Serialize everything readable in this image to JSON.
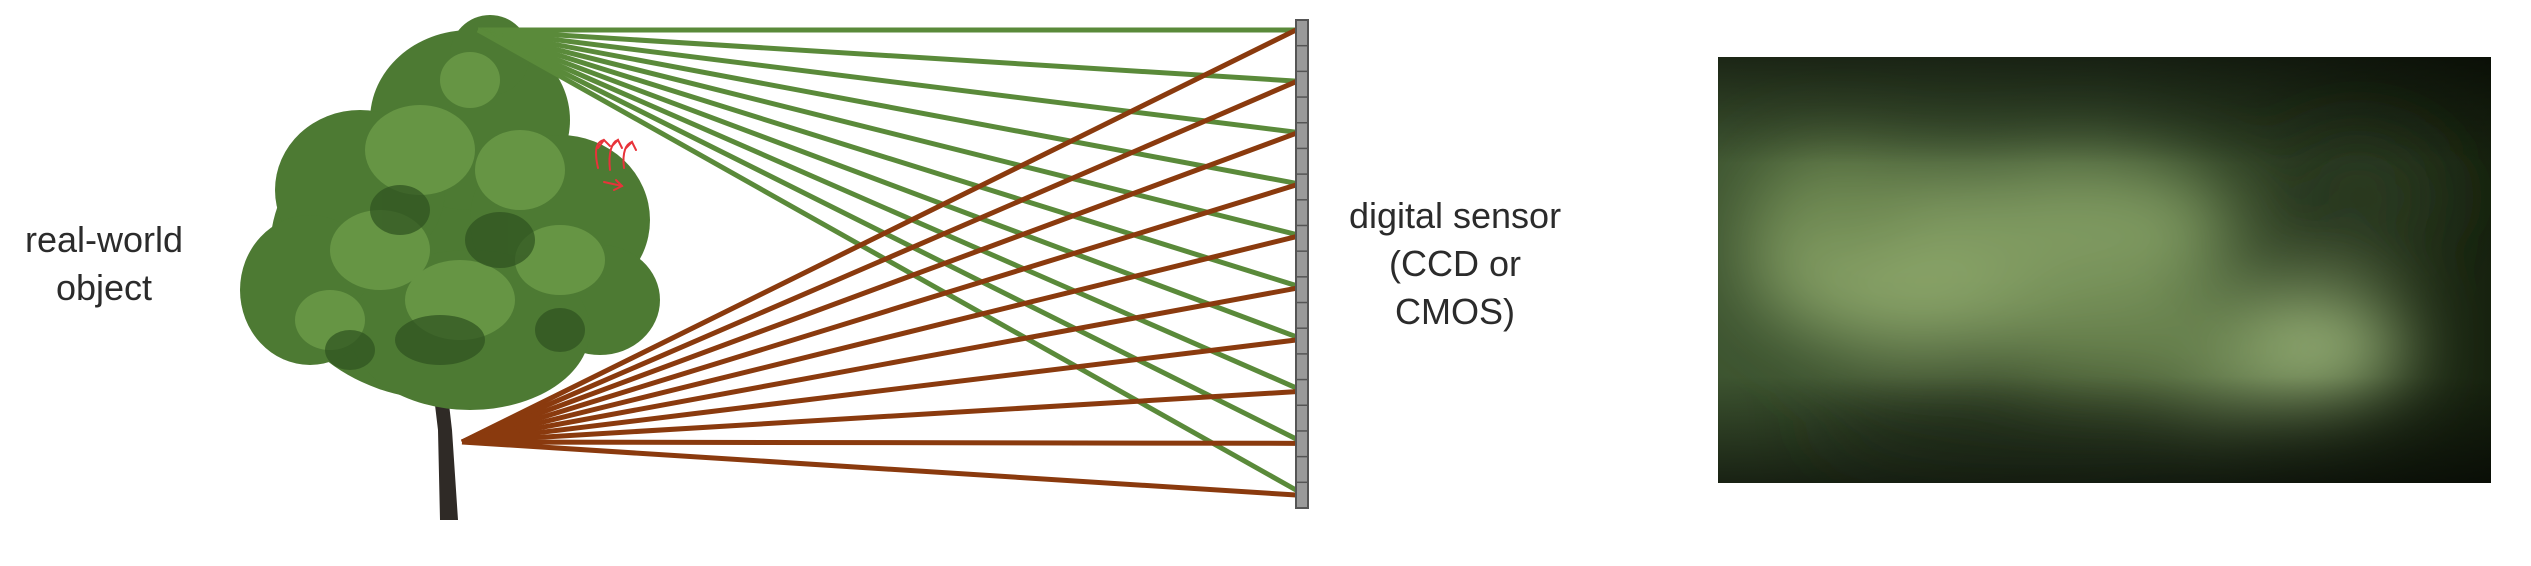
{
  "labels": {
    "object_line1": "real-world",
    "object_line2": "object",
    "sensor_line1": "digital sensor",
    "sensor_line2": "(CCD or",
    "sensor_line3": "CMOS)"
  },
  "colors": {
    "rays_top": "#5a8a3a",
    "rays_bottom": "#8a3a0e",
    "sensor": "#9a9a9a",
    "sensor_border": "#555555",
    "annotation": "#e8333a",
    "blur_dark": "#1c2a17",
    "blur_light": "#9bb57a"
  },
  "diagram": {
    "ray_count_per_source": 10,
    "sensor_pixel_count": 19
  },
  "icons": {
    "tree": "tree-icon",
    "annotation": "handwritten-arrows-icon"
  }
}
